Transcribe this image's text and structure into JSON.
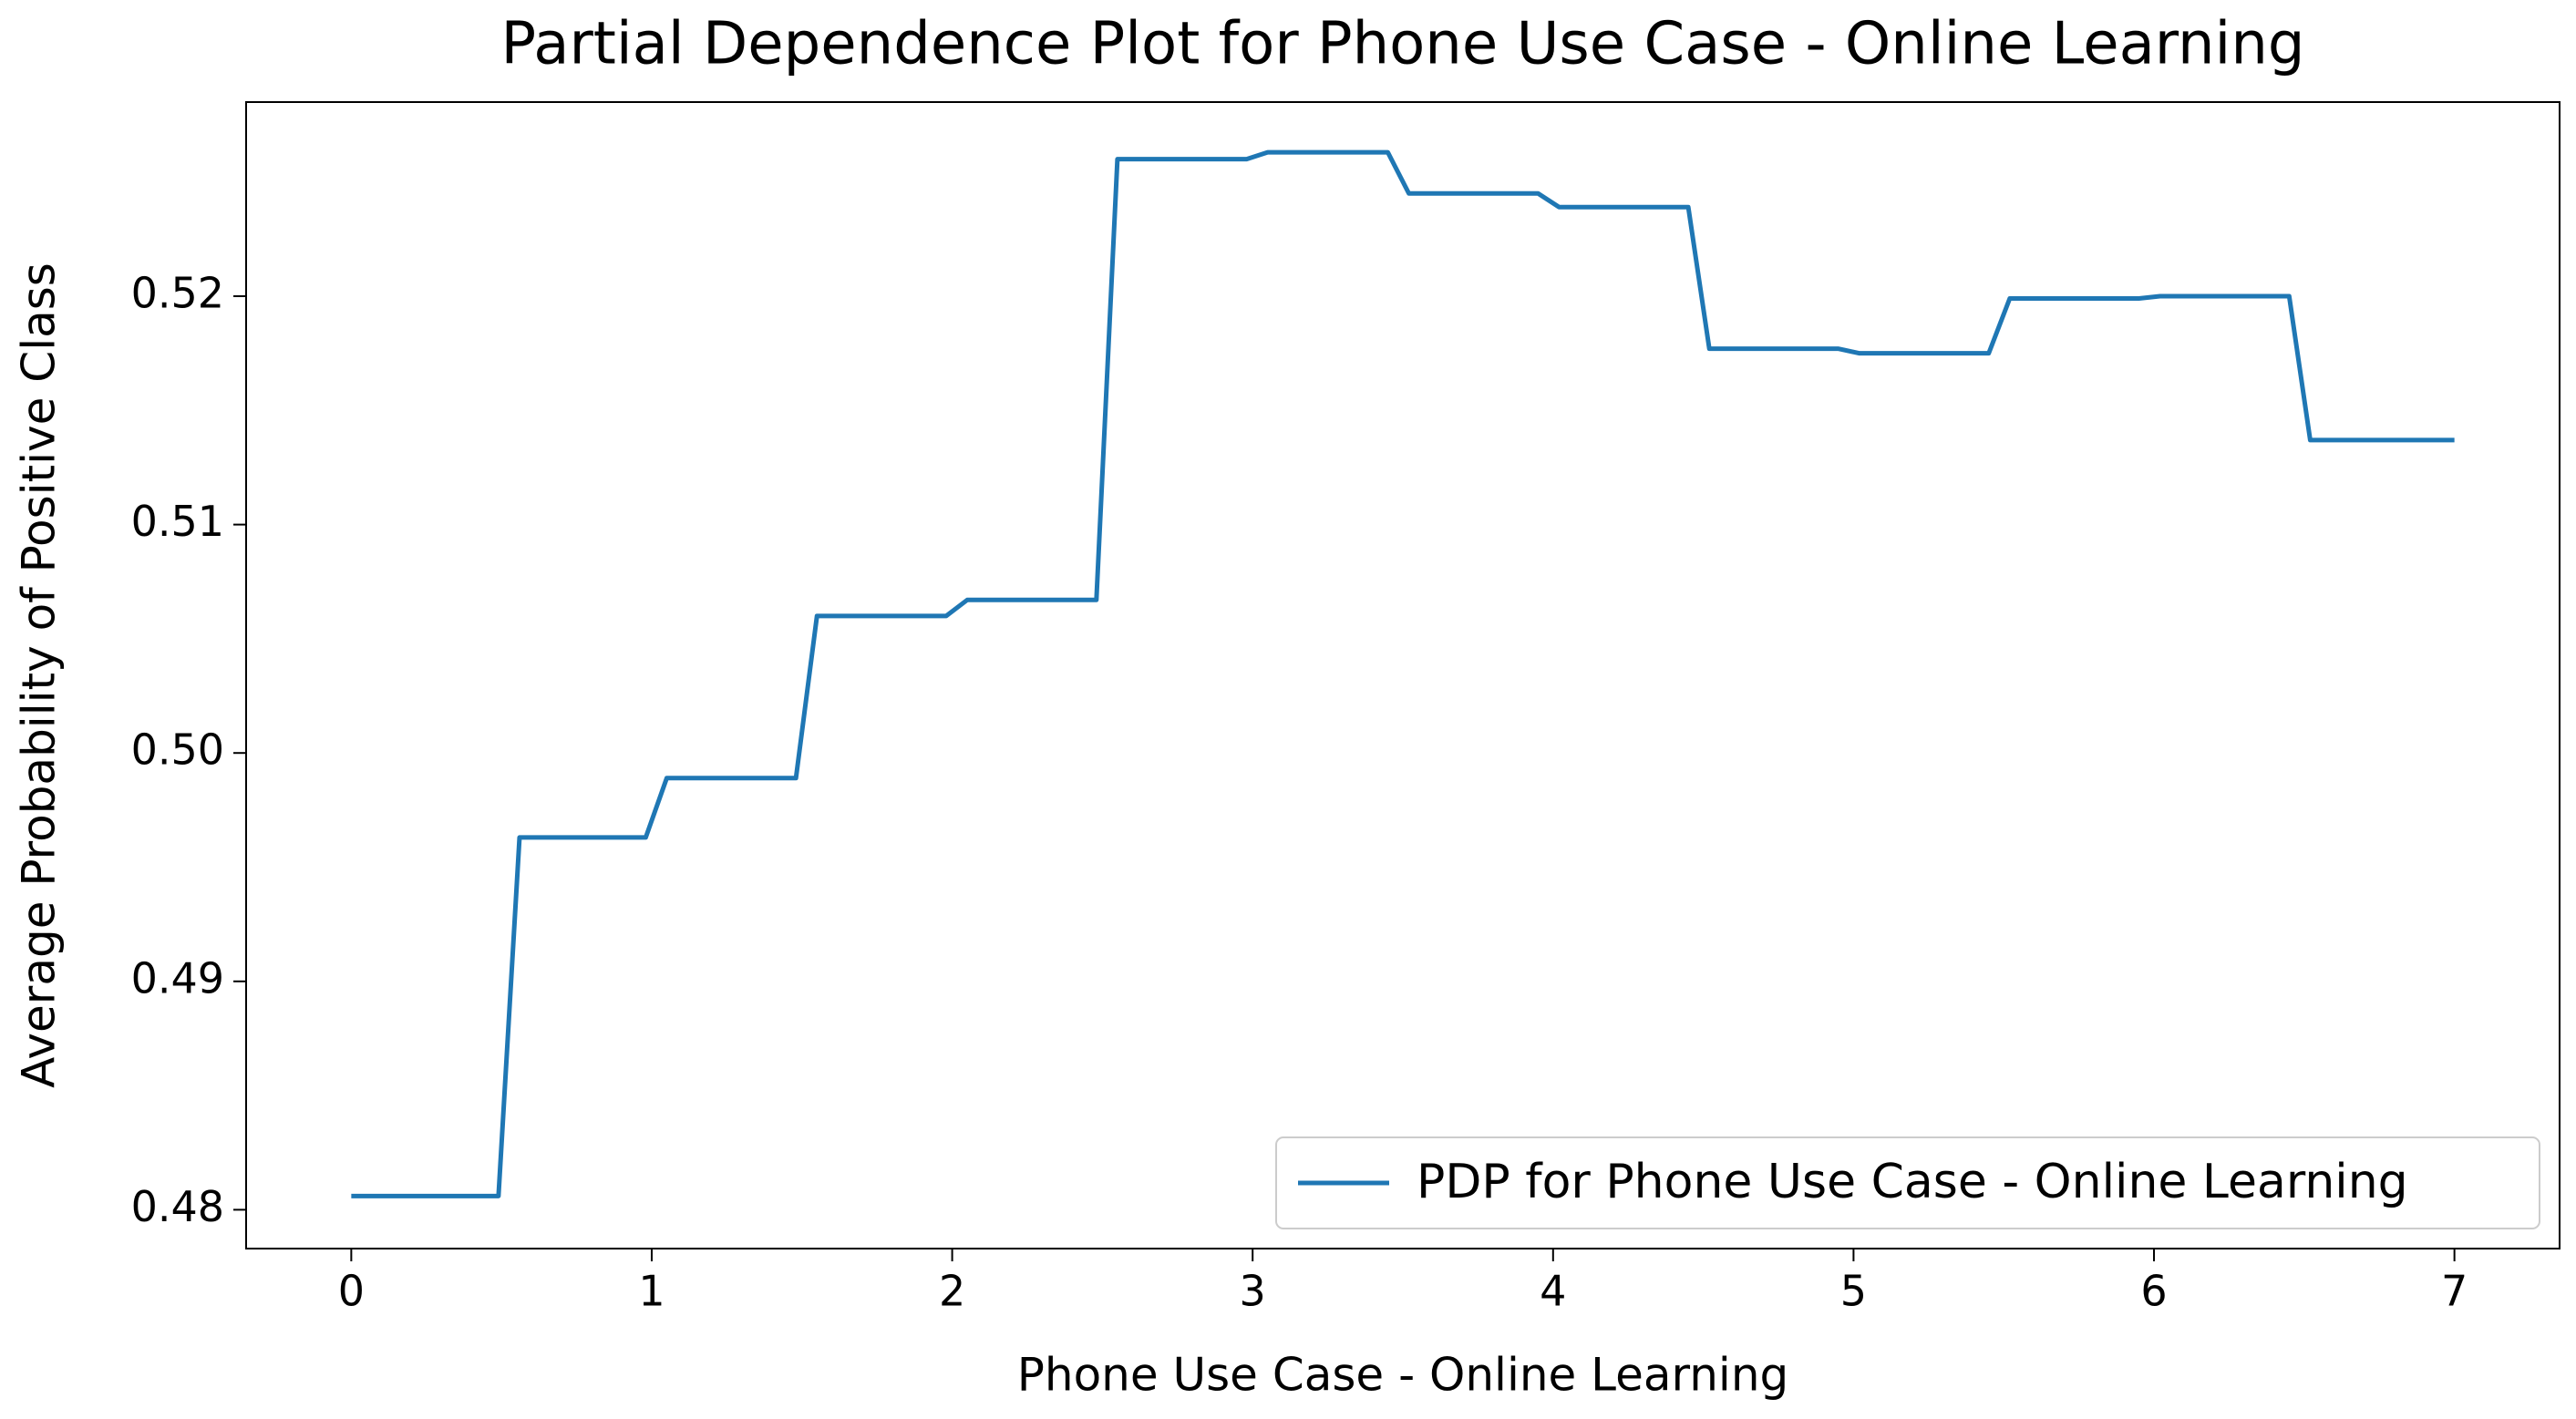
{
  "chart_data": {
    "type": "line",
    "title": "Partial Dependence Plot for Phone Use Case - Online Learning",
    "x_label": "Phone Use Case - Online Learning",
    "y_label": "Average Probability of Positive Class",
    "x": [
      0,
      0.49,
      0.56,
      0.98,
      1.05,
      1.48,
      1.55,
      1.98,
      2.05,
      2.48,
      2.55,
      2.98,
      3.05,
      3.45,
      3.52,
      3.95,
      4.02,
      4.45,
      4.52,
      4.95,
      5.02,
      5.45,
      5.52,
      5.95,
      6.02,
      6.45,
      6.52,
      7
    ],
    "series": [
      {
        "name": "PDP for Phone Use Case - Online Learning",
        "color": "#1f77b4",
        "values": [
          0.4806,
          0.4806,
          0.4963,
          0.4963,
          0.4989,
          0.4989,
          0.506,
          0.506,
          0.5067,
          0.5067,
          0.526,
          0.526,
          0.5263,
          0.5263,
          0.5245,
          0.5245,
          0.5239,
          0.5239,
          0.5177,
          0.5177,
          0.5175,
          0.5175,
          0.5199,
          0.5199,
          0.52,
          0.52,
          0.5137,
          0.5137
        ]
      }
    ],
    "xlim": [
      -0.35,
      7.35
    ],
    "ylim": [
      0.4783,
      0.5285
    ],
    "xticks": [
      0,
      1,
      2,
      3,
      4,
      5,
      6,
      7
    ],
    "yticks": [
      0.48,
      0.49,
      {
        "value": 0.5,
        "label": "0.50"
      },
      0.51,
      0.52
    ],
    "grid": false,
    "legend": "lower right"
  }
}
